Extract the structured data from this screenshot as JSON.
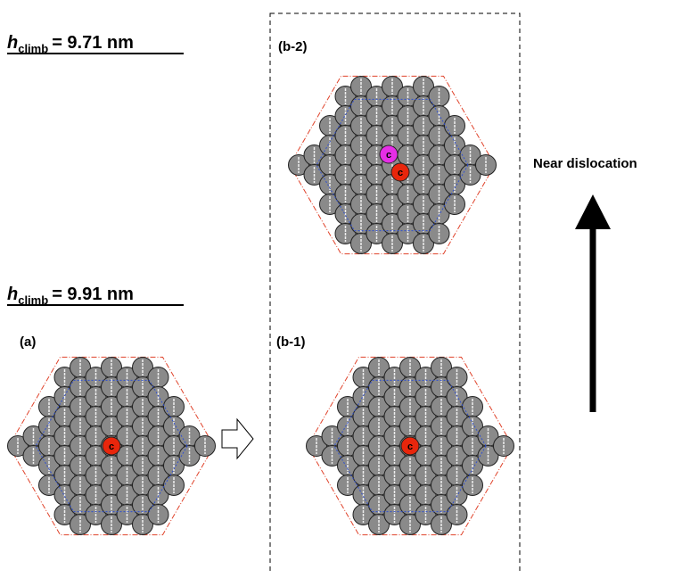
{
  "heading_top": {
    "symbol": "h",
    "subscript": "climb",
    "value": "= 9.71 nm"
  },
  "heading_bottom": {
    "symbol": "h",
    "subscript": "climb",
    "value": "= 9.91 nm"
  },
  "panels": [
    {
      "label": "(a)",
      "atom_labels": [
        "c"
      ]
    },
    {
      "label": "(b-1)",
      "atom_labels": [
        "c"
      ]
    },
    {
      "label": "(b-2)",
      "atom_labels": [
        "c",
        "c"
      ]
    }
  ],
  "arrow_label": "Near dislocation"
}
